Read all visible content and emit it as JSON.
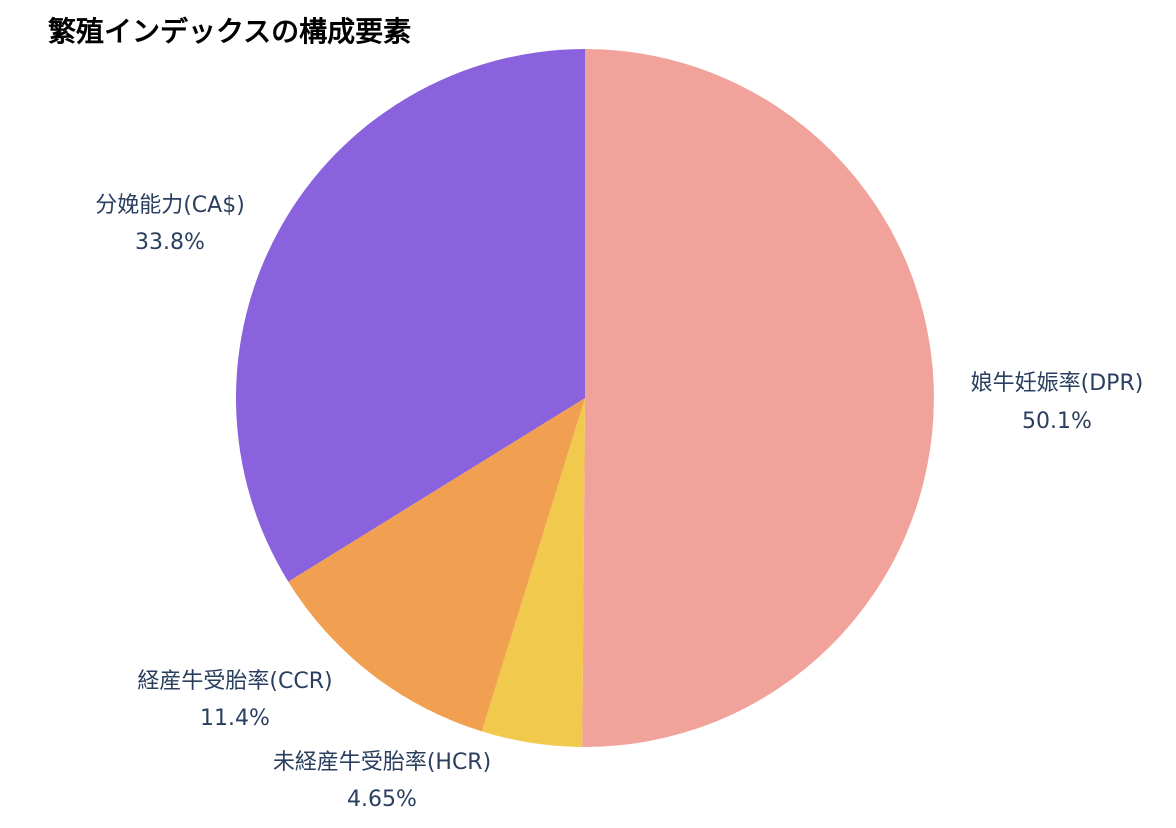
{
  "chart_data": {
    "type": "pie",
    "title": "繁殖インデックスの構成要素",
    "slices": [
      {
        "label": "娘牛妊娠率(DPR)",
        "value": 50.1,
        "value_text": "50.1%",
        "color": "#f1a29b"
      },
      {
        "label": "未経産牛受胎率(HCR)",
        "value": 4.65,
        "value_text": "4.65%",
        "color": "#f0c94d"
      },
      {
        "label": "経産牛受胎率(CCR)",
        "value": 11.4,
        "value_text": "11.4%",
        "color": "#f0a050"
      },
      {
        "label": "分娩能力(CA$)",
        "value": 33.8,
        "value_text": "33.8%",
        "color": "#8a62dd"
      }
    ],
    "direction": "clockwise",
    "start": "top",
    "legend": "none"
  }
}
